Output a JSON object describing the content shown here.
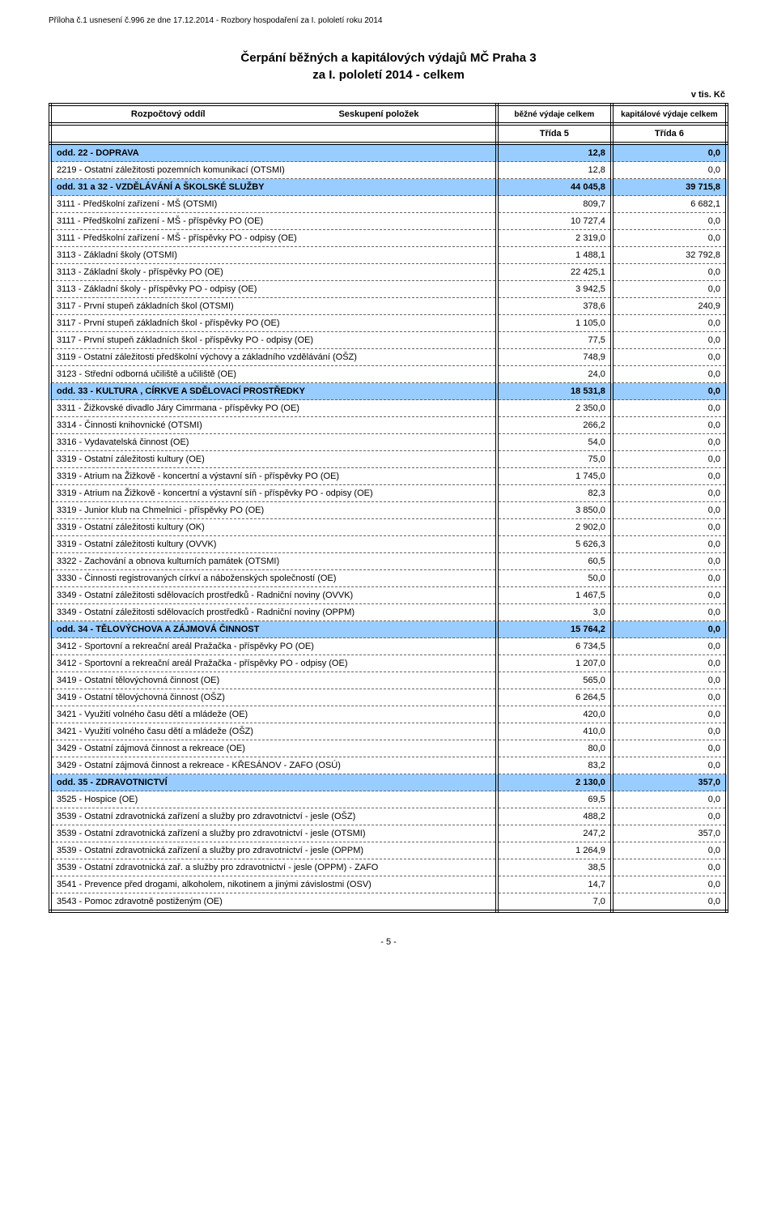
{
  "doc_header": "Příloha č.1 usnesení č.996 ze dne 17.12.2014 - Rozbory hospodaření za I. pololetí roku 2014",
  "title_line1": "Čerpání běžných a kapitálových výdajů MČ Praha 3",
  "title_line2": "za I. pololetí 2014 - celkem",
  "unit": "v tis. Kč",
  "header": {
    "col1a": "Rozpočtový oddíl",
    "col1b": "Seskupení položek",
    "col2_top": "běžné výdaje celkem",
    "col3_top": "kapitálové výdaje celkem",
    "col2_class": "Třída 5",
    "col3_class": "Třída 6"
  },
  "colors": {
    "section_bg": "#99ccff",
    "border": "#000000",
    "text": "#000000",
    "dash": "#666666",
    "page_bg": "#ffffff"
  },
  "rows": [
    {
      "section": true,
      "label": "odd. 22 - DOPRAVA",
      "v1": "12,8",
      "v2": "0,0"
    },
    {
      "section": false,
      "label": "2219 - Ostatní záležitosti pozemních komunikací (OTSMI)",
      "v1": "12,8",
      "v2": "0,0"
    },
    {
      "section": true,
      "label": "odd. 31 a 32 - VZDĚLÁVÁNÍ  A  ŠKOLSKÉ  SLUŽBY",
      "v1": "44 045,8",
      "v2": "39 715,8"
    },
    {
      "section": false,
      "label": "3111 - Předškolní zařízení - MŠ (OTSMI)",
      "v1": "809,7",
      "v2": "6 682,1"
    },
    {
      "section": false,
      "label": "3111 - Předškolní zařízení - MŠ - příspěvky PO (OE)",
      "v1": "10 727,4",
      "v2": "0,0"
    },
    {
      "section": false,
      "label": "3111 - Předškolní zařízení - MŠ - příspěvky PO - odpisy (OE)",
      "v1": "2 319,0",
      "v2": "0,0"
    },
    {
      "section": false,
      "label": "3113 - Základní školy (OTSMI)",
      "v1": "1 488,1",
      "v2": "32 792,8"
    },
    {
      "section": false,
      "label": "3113 - Základní školy - příspěvky PO (OE)",
      "v1": "22 425,1",
      "v2": "0,0"
    },
    {
      "section": false,
      "label": "3113 - Základní školy - příspěvky PO - odpisy (OE)",
      "v1": "3 942,5",
      "v2": "0,0"
    },
    {
      "section": false,
      "label": "3117 - První stupeň základních škol (OTSMI)",
      "v1": "378,6",
      "v2": "240,9"
    },
    {
      "section": false,
      "label": "3117 - První stupeň základních škol - příspěvky PO (OE)",
      "v1": "1 105,0",
      "v2": "0,0"
    },
    {
      "section": false,
      "label": "3117 - První stupeň základních škol - příspěvky PO - odpisy (OE)",
      "v1": "77,5",
      "v2": "0,0"
    },
    {
      "section": false,
      "label": "3119 - Ostatní záležitosti předškolní výchovy a základního vzdělávání (OŠZ)",
      "v1": "748,9",
      "v2": "0,0"
    },
    {
      "section": false,
      "label": "3123 - Střední odborná učiliště a učiliště (OE)",
      "v1": "24,0",
      "v2": "0,0"
    },
    {
      "section": true,
      "label": "odd. 33 - KULTURA ,  CÍRKVE  A  SDĚLOVACÍ  PROSTŘEDKY",
      "v1": "18 531,8",
      "v2": "0,0"
    },
    {
      "section": false,
      "label": "3311 - Žižkovské divadlo Járy Cimrmana - příspěvky PO (OE)",
      "v1": "2 350,0",
      "v2": "0,0"
    },
    {
      "section": false,
      "label": "3314 - Činnosti knihovnické (OTSMI)",
      "v1": "266,2",
      "v2": "0,0"
    },
    {
      "section": false,
      "label": "3316 - Vydavatelská činnost (OE)",
      "v1": "54,0",
      "v2": "0,0"
    },
    {
      "section": false,
      "label": "3319 - Ostatní záležitosti kultury (OE)",
      "v1": "75,0",
      "v2": "0,0"
    },
    {
      "section": false,
      "label": "3319 - Atrium na Žižkově - koncertní a výstavní síň - příspěvky PO (OE)",
      "v1": "1 745,0",
      "v2": "0,0"
    },
    {
      "section": false,
      "label": "3319 - Atrium na Žižkově - koncertní a výstavní síň - příspěvky PO - odpisy (OE)",
      "v1": "82,3",
      "v2": "0,0"
    },
    {
      "section": false,
      "label": "3319 - Junior klub na Chmelnici - příspěvky PO (OE)",
      "v1": "3 850,0",
      "v2": "0,0"
    },
    {
      "section": false,
      "label": "3319 - Ostatní záležitosti kultury (OK)",
      "v1": "2 902,0",
      "v2": "0,0"
    },
    {
      "section": false,
      "label": "3319 - Ostatní záležitosti kultury (OVVK)",
      "v1": "5 626,3",
      "v2": "0,0"
    },
    {
      "section": false,
      "label": "3322 - Zachování a obnova kulturních památek (OTSMI)",
      "v1": "60,5",
      "v2": "0,0"
    },
    {
      "section": false,
      "label": "3330 - Činnosti registrovaných církví a náboženských společností (OE)",
      "v1": "50,0",
      "v2": "0,0"
    },
    {
      "section": false,
      "label": "3349 - Ostatní záležitosti sdělovacích prostředků - Radniční noviny (OVVK)",
      "v1": "1 467,5",
      "v2": "0,0"
    },
    {
      "section": false,
      "label": "3349 - Ostatní záležitosti sdělovacích prostředků - Radniční noviny (OPPM)",
      "v1": "3,0",
      "v2": "0,0"
    },
    {
      "section": true,
      "label": "odd. 34 - TĚLOVÝCHOVA  A  ZÁJMOVÁ  ČINNOST",
      "v1": "15 764,2",
      "v2": "0,0"
    },
    {
      "section": false,
      "label": "3412 - Sportovní a rekreační areál Pražačka - příspěvky PO (OE)",
      "v1": "6 734,5",
      "v2": "0,0"
    },
    {
      "section": false,
      "label": "3412 - Sportovní a rekreační areál Pražačka - příspěvky PO - odpisy (OE)",
      "v1": "1 207,0",
      "v2": "0,0"
    },
    {
      "section": false,
      "label": "3419 - Ostatní tělovýchovná činnost (OE)",
      "v1": "565,0",
      "v2": "0,0"
    },
    {
      "section": false,
      "label": "3419 - Ostatní tělovýchovná činnost (OŠZ)",
      "v1": "6 264,5",
      "v2": "0,0"
    },
    {
      "section": false,
      "label": "3421 - Využití volného času dětí a mládeže (OE)",
      "v1": "420,0",
      "v2": "0,0"
    },
    {
      "section": false,
      "label": "3421 - Využití volného času dětí a mládeže (OŠZ)",
      "v1": "410,0",
      "v2": "0,0"
    },
    {
      "section": false,
      "label": "3429 - Ostatní zájmová činnost a rekreace (OE)",
      "v1": "80,0",
      "v2": "0,0"
    },
    {
      "section": false,
      "label": "3429 - Ostatní zájmová činnost a rekreace - KŘESÁNOV - ZAFO (OSÚ)",
      "v1": "83,2",
      "v2": "0,0"
    },
    {
      "section": true,
      "label": "odd. 35 - ZDRAVOTNICTVÍ",
      "v1": "2 130,0",
      "v2": "357,0"
    },
    {
      "section": false,
      "label": "3525 - Hospice (OE)",
      "v1": "69,5",
      "v2": "0,0"
    },
    {
      "section": false,
      "label": "3539 - Ostatní zdravotnická zařízení a služby pro zdravotnictví - jesle (OŠZ)",
      "v1": "488,2",
      "v2": "0,0"
    },
    {
      "section": false,
      "label": "3539 - Ostatní zdravotnická zařízení a služby pro zdravotnictví - jesle (OTSMI)",
      "v1": "247,2",
      "v2": "357,0"
    },
    {
      "section": false,
      "label": "3539 - Ostatní zdravotnická zařízení a služby pro zdravotnictví - jesle (OPPM)",
      "v1": "1 264,9",
      "v2": "0,0"
    },
    {
      "section": false,
      "label": "3539 - Ostatní zdravotnická zař. a služby pro zdravotnictví - jesle (OPPM) - ZAFO",
      "v1": "38,5",
      "v2": "0,0"
    },
    {
      "section": false,
      "label": "3541 - Prevence před drogami, alkoholem, nikotinem a jinými závislostmi (OSV)",
      "v1": "14,7",
      "v2": "0,0"
    },
    {
      "section": false,
      "label": "3543 - Pomoc zdravotně postiženým (OE)",
      "v1": "7,0",
      "v2": "0,0"
    }
  ],
  "page_number": "- 5 -"
}
